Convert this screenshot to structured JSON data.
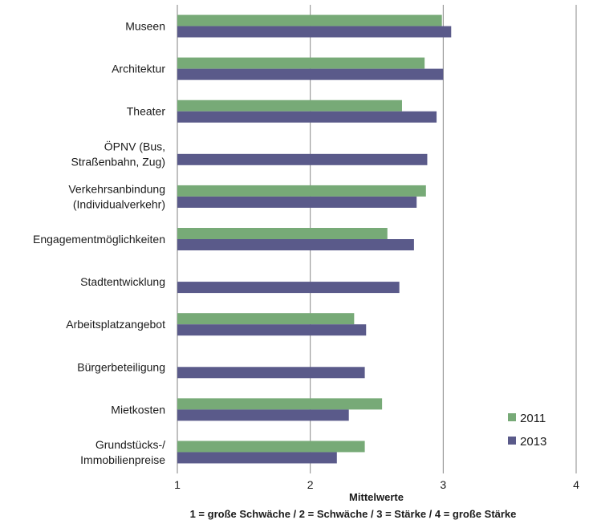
{
  "chart_data": {
    "type": "bar",
    "orientation": "horizontal",
    "categories": [
      [
        "Museen"
      ],
      [
        "Architektur"
      ],
      [
        "Theater"
      ],
      [
        "ÖPNV (Bus,",
        "Straßenbahn, Zug)"
      ],
      [
        "Verkehrsanbindung",
        "(Individualverkehr)"
      ],
      [
        "Engagementmöglichkeiten"
      ],
      [
        "Stadtentwicklung"
      ],
      [
        "Arbeitsplatzangebot"
      ],
      [
        "Bürgerbeteiligung"
      ],
      [
        "Mietkosten"
      ],
      [
        "Grundstücks-/",
        "Immobilienpreise"
      ]
    ],
    "series": [
      {
        "name": "2011",
        "color": "#77aa77",
        "values": [
          2.99,
          2.86,
          2.69,
          null,
          2.87,
          2.58,
          null,
          2.33,
          null,
          2.54,
          2.41
        ]
      },
      {
        "name": "2013",
        "color": "#5a5a8a",
        "values": [
          3.06,
          3.0,
          2.95,
          2.88,
          2.8,
          2.78,
          2.67,
          2.42,
          2.41,
          2.29,
          2.2
        ]
      }
    ],
    "xlim": [
      1,
      4
    ],
    "xticks": [
      "1",
      "2",
      "3",
      "4"
    ],
    "xlabel": "Mittelwerte",
    "xsublabel": "1 = große Schwäche / 2 = Schwäche / 3 = Stärke / 4 = große Stärke",
    "grid": true,
    "legend_position": "bottom-right"
  }
}
